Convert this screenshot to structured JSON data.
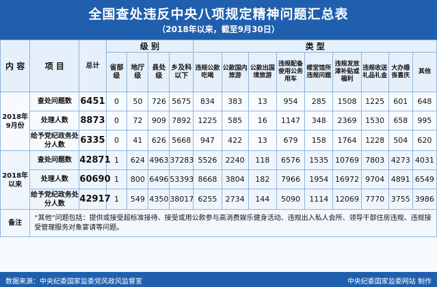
{
  "title": "全国查处违反中央八项规定精神问题汇总表",
  "subtitle": "（2018年以来，截至9月30日）",
  "headers": {
    "content": "内 容",
    "item": "项 目",
    "total": "总计",
    "level_group": "级 别",
    "type_group": "类 型",
    "levels": [
      "省部级",
      "地厅级",
      "县处级",
      "乡及科以下"
    ],
    "types": [
      "违规公款吃喝",
      "公款国内旅游",
      "公款出国境旅游",
      "违规配备使用公务用车",
      "楼堂馆所违规问题",
      "违规发放津补贴或福利",
      "违规收送礼品礼金",
      "大办婚丧喜庆",
      "其他"
    ]
  },
  "sections": [
    {
      "period": "2018年9月份",
      "rows": [
        {
          "item": "查处问题数",
          "total": "6451",
          "levels": [
            "0",
            "50",
            "726",
            "5675"
          ],
          "types": [
            "834",
            "383",
            "13",
            "954",
            "285",
            "1508",
            "1225",
            "601",
            "648"
          ]
        },
        {
          "item": "处理人数",
          "total": "8873",
          "levels": [
            "0",
            "72",
            "909",
            "7892"
          ],
          "types": [
            "1225",
            "585",
            "16",
            "1147",
            "348",
            "2369",
            "1530",
            "658",
            "995"
          ]
        },
        {
          "item": "给予党纪政务处分人数",
          "total": "6335",
          "levels": [
            "0",
            "41",
            "626",
            "5668"
          ],
          "types": [
            "947",
            "422",
            "13",
            "679",
            "158",
            "1764",
            "1228",
            "504",
            "620"
          ]
        }
      ]
    },
    {
      "period": "2018年以来",
      "rows": [
        {
          "item": "查处问题数",
          "total": "42871",
          "levels": [
            "1",
            "624",
            "4963",
            "37283"
          ],
          "types": [
            "5526",
            "2240",
            "118",
            "6576",
            "1535",
            "10769",
            "7803",
            "4273",
            "4031"
          ]
        },
        {
          "item": "处理人数",
          "total": "60690",
          "levels": [
            "1",
            "800",
            "6496",
            "53393"
          ],
          "types": [
            "8668",
            "3804",
            "182",
            "7966",
            "1954",
            "16972",
            "9704",
            "4891",
            "6549"
          ]
        },
        {
          "item": "给予党纪政务处分人数",
          "total": "42917",
          "levels": [
            "1",
            "549",
            "4350",
            "38017"
          ],
          "types": [
            "6255",
            "2734",
            "144",
            "5090",
            "1114",
            "12069",
            "7770",
            "3755",
            "3986"
          ]
        }
      ]
    }
  ],
  "note_label": "备注",
  "note_text": "“其他”问题包括：提供或接受超标准接待、接受或用公款参与高消费娱乐健身活动、违规出入私人会所、领导干部住房违规、违规接受管理服务对象宴请等问题。",
  "footer": {
    "source": "数据来源：中央纪委国家监委党风政风监督室",
    "credit": "中央纪委国家监委网站  制作"
  },
  "colors": {
    "header_blue": "#1f5fae",
    "grid": "#8fb3d9"
  }
}
